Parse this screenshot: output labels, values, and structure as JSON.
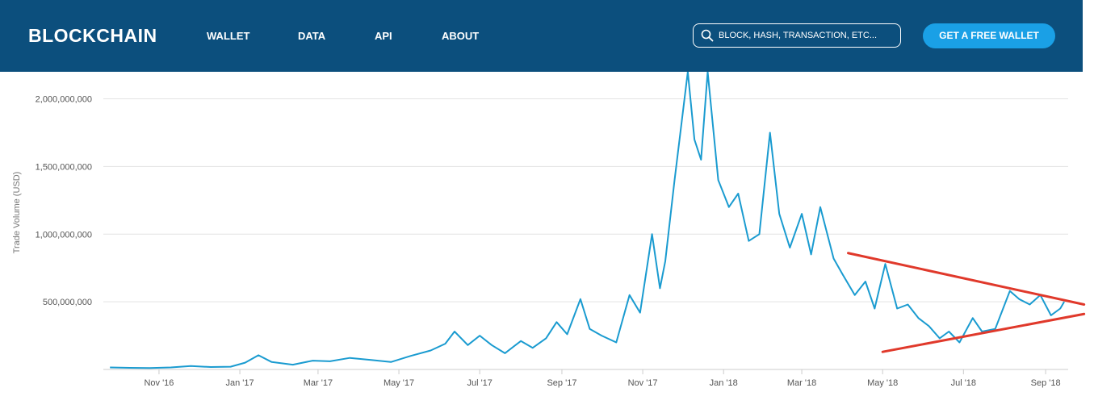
{
  "header": {
    "logo": "BLOCKCHAIN",
    "nav": [
      "WALLET",
      "DATA",
      "API",
      "ABOUT"
    ],
    "search_placeholder": "BLOCK, HASH, TRANSACTION, ETC...",
    "cta_label": "GET A FREE WALLET",
    "bar_color": "#0c4f7d",
    "cta_color": "#1aa0e6"
  },
  "chart_data": {
    "type": "line",
    "ylabel": "Trade Volume (USD)",
    "ylim": [
      0,
      2200000000
    ],
    "yticks": [
      {
        "value": 500000000,
        "label": "500,000,000"
      },
      {
        "value": 1000000000,
        "label": "1,000,000,000"
      },
      {
        "value": 1500000000,
        "label": "1,500,000,000"
      },
      {
        "value": 2000000000,
        "label": "2,000,000,000"
      }
    ],
    "xlim": [
      "2016-09-20",
      "2018-09-18"
    ],
    "xticks": [
      {
        "date": "2016-11-01",
        "label": "Nov '16"
      },
      {
        "date": "2017-01-01",
        "label": "Jan '17"
      },
      {
        "date": "2017-03-01",
        "label": "Mar '17"
      },
      {
        "date": "2017-05-01",
        "label": "May '17"
      },
      {
        "date": "2017-07-01",
        "label": "Jul '17"
      },
      {
        "date": "2017-09-01",
        "label": "Sep '17"
      },
      {
        "date": "2017-11-01",
        "label": "Nov '17"
      },
      {
        "date": "2018-01-01",
        "label": "Jan '18"
      },
      {
        "date": "2018-03-01",
        "label": "Mar '18"
      },
      {
        "date": "2018-05-01",
        "label": "May '18"
      },
      {
        "date": "2018-07-01",
        "label": "Jul '18"
      },
      {
        "date": "2018-09-01",
        "label": "Sep '18"
      }
    ],
    "grid": true,
    "line_color": "#1a9bd0",
    "series": [
      {
        "points": [
          [
            "2016-09-25",
            15000000
          ],
          [
            "2016-10-10",
            12000000
          ],
          [
            "2016-10-25",
            10000000
          ],
          [
            "2016-11-10",
            15000000
          ],
          [
            "2016-11-25",
            25000000
          ],
          [
            "2016-12-10",
            18000000
          ],
          [
            "2016-12-25",
            20000000
          ],
          [
            "2017-01-05",
            50000000
          ],
          [
            "2017-01-15",
            105000000
          ],
          [
            "2017-01-25",
            55000000
          ],
          [
            "2017-02-10",
            35000000
          ],
          [
            "2017-02-25",
            65000000
          ],
          [
            "2017-03-10",
            60000000
          ],
          [
            "2017-03-25",
            85000000
          ],
          [
            "2017-04-10",
            70000000
          ],
          [
            "2017-04-25",
            55000000
          ],
          [
            "2017-05-10",
            100000000
          ],
          [
            "2017-05-25",
            140000000
          ],
          [
            "2017-06-05",
            190000000
          ],
          [
            "2017-06-12",
            280000000
          ],
          [
            "2017-06-22",
            180000000
          ],
          [
            "2017-07-01",
            250000000
          ],
          [
            "2017-07-10",
            180000000
          ],
          [
            "2017-07-20",
            120000000
          ],
          [
            "2017-08-01",
            210000000
          ],
          [
            "2017-08-10",
            160000000
          ],
          [
            "2017-08-20",
            230000000
          ],
          [
            "2017-08-28",
            350000000
          ],
          [
            "2017-09-05",
            260000000
          ],
          [
            "2017-09-15",
            520000000
          ],
          [
            "2017-09-22",
            300000000
          ],
          [
            "2017-10-01",
            250000000
          ],
          [
            "2017-10-12",
            200000000
          ],
          [
            "2017-10-22",
            550000000
          ],
          [
            "2017-10-30",
            420000000
          ],
          [
            "2017-11-08",
            1000000000
          ],
          [
            "2017-11-14",
            600000000
          ],
          [
            "2017-11-18",
            800000000
          ],
          [
            "2017-11-25",
            1400000000
          ],
          [
            "2017-12-05",
            2200000000
          ],
          [
            "2017-12-10",
            1700000000
          ],
          [
            "2017-12-15",
            1550000000
          ],
          [
            "2017-12-20",
            2200000000
          ],
          [
            "2017-12-28",
            1400000000
          ],
          [
            "2018-01-05",
            1200000000
          ],
          [
            "2018-01-12",
            1300000000
          ],
          [
            "2018-01-20",
            950000000
          ],
          [
            "2018-01-28",
            1000000000
          ],
          [
            "2018-02-05",
            1750000000
          ],
          [
            "2018-02-12",
            1150000000
          ],
          [
            "2018-02-20",
            900000000
          ],
          [
            "2018-03-01",
            1150000000
          ],
          [
            "2018-03-08",
            850000000
          ],
          [
            "2018-03-15",
            1200000000
          ],
          [
            "2018-03-25",
            820000000
          ],
          [
            "2018-04-01",
            700000000
          ],
          [
            "2018-04-10",
            550000000
          ],
          [
            "2018-04-18",
            650000000
          ],
          [
            "2018-04-25",
            450000000
          ],
          [
            "2018-05-03",
            780000000
          ],
          [
            "2018-05-12",
            450000000
          ],
          [
            "2018-05-20",
            480000000
          ],
          [
            "2018-05-28",
            380000000
          ],
          [
            "2018-06-05",
            320000000
          ],
          [
            "2018-06-13",
            230000000
          ],
          [
            "2018-06-20",
            280000000
          ],
          [
            "2018-06-28",
            200000000
          ],
          [
            "2018-07-08",
            380000000
          ],
          [
            "2018-07-15",
            280000000
          ],
          [
            "2018-07-25",
            300000000
          ],
          [
            "2018-08-05",
            580000000
          ],
          [
            "2018-08-12",
            520000000
          ],
          [
            "2018-08-20",
            480000000
          ],
          [
            "2018-08-28",
            550000000
          ],
          [
            "2018-09-05",
            400000000
          ],
          [
            "2018-09-12",
            450000000
          ],
          [
            "2018-09-15",
            500000000
          ]
        ]
      }
    ],
    "annotations": {
      "color": "#e0392b",
      "trendlines": [
        {
          "start": [
            "2018-04-05",
            860000000
          ],
          "end": [
            "2018-09-30",
            480000000
          ]
        },
        {
          "start": [
            "2018-05-01",
            130000000
          ],
          "end": [
            "2018-09-30",
            410000000
          ]
        }
      ]
    }
  }
}
